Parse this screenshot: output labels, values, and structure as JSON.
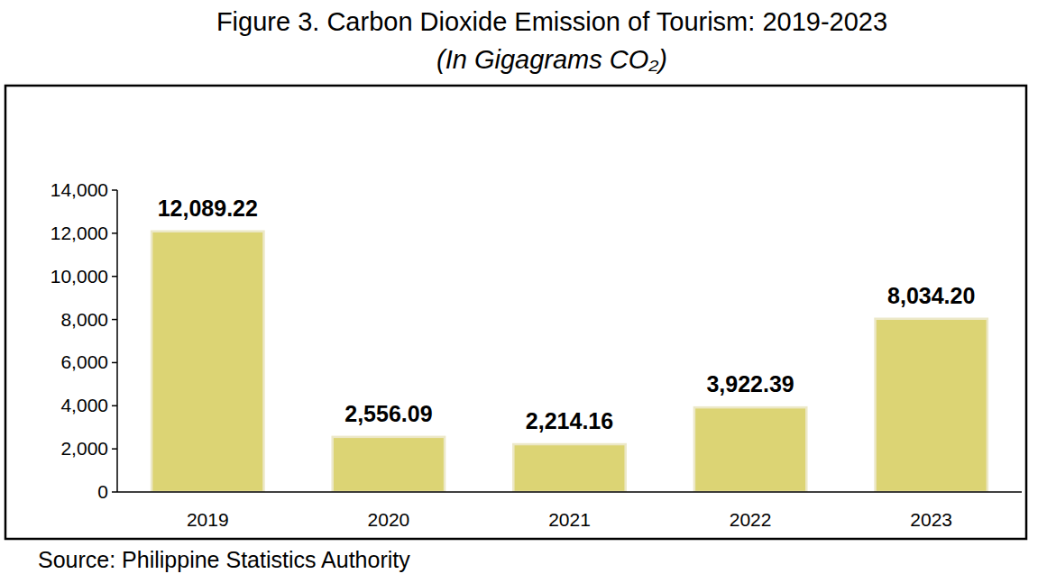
{
  "chart_data": {
    "type": "bar",
    "title": "Figure 3. Carbon Dioxide Emission of Tourism: 2019-2023",
    "subtitle": "(In Gigagrams CO₂)",
    "categories": [
      "2019",
      "2020",
      "2021",
      "2022",
      "2023"
    ],
    "values": [
      12089.22,
      2556.09,
      2214.16,
      3922.39,
      8034.2
    ],
    "value_labels": [
      "12,089.22",
      "2,556.09",
      "2,214.16",
      "3,922.39",
      "8,034.20"
    ],
    "color": "#dcd474",
    "ylim": [
      0,
      14000
    ],
    "yticks": [
      0,
      {
        "value": 2000,
        "label": "2,000"
      },
      {
        "value": 4000,
        "label": "4,000"
      },
      {
        "value": 6000,
        "label": "6,000"
      },
      {
        "value": 8000,
        "label": "8,000"
      },
      {
        "value": 10000,
        "label": "10,000"
      },
      {
        "value": 12000,
        "label": "12,000"
      },
      {
        "value": 14000,
        "label": "14,000"
      }
    ],
    "grid": false,
    "data_labels": true,
    "source": "Source: Philippine Statistics Authority"
  }
}
